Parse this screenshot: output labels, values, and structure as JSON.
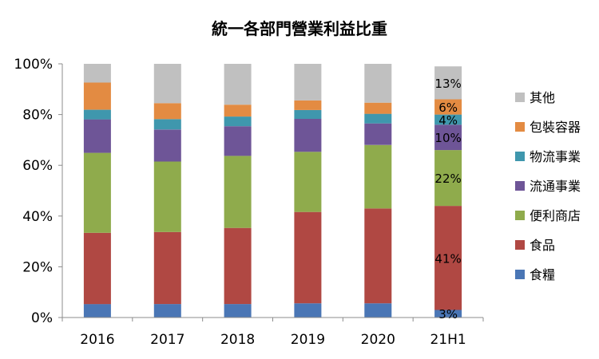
{
  "chart_data": {
    "type": "bar",
    "stacked": true,
    "percent": true,
    "title": "統一各部門營業利益比重",
    "categories": [
      "2016",
      "2017",
      "2018",
      "2019",
      "2020",
      "21H1"
    ],
    "ylim": [
      0,
      100
    ],
    "yticks": [
      "0%",
      "20%",
      "40%",
      "60%",
      "80%",
      "100%"
    ],
    "grid": false,
    "legend_position": "right",
    "series": [
      {
        "name": "食糧",
        "color": "#4A76B5",
        "values": [
          5.3,
          5.3,
          5.3,
          5.6,
          5.6,
          3
        ]
      },
      {
        "name": "食品",
        "color": "#B04843",
        "values": [
          28.1,
          28.4,
          30.0,
          36.0,
          37.4,
          41
        ]
      },
      {
        "name": "便利商店",
        "color": "#8FAB4C",
        "values": [
          31.5,
          27.8,
          28.4,
          23.7,
          25.0,
          22
        ]
      },
      {
        "name": "流通事業",
        "color": "#6E5597",
        "values": [
          13.2,
          12.6,
          11.7,
          13.0,
          8.5,
          10
        ]
      },
      {
        "name": "物流事業",
        "color": "#3F97AD",
        "values": [
          3.8,
          4.1,
          3.8,
          3.5,
          3.8,
          4
        ]
      },
      {
        "name": "包裝容器",
        "color": "#E38B42",
        "values": [
          10.7,
          6.3,
          4.7,
          3.8,
          4.4,
          6
        ]
      },
      {
        "name": "其他",
        "color": "#C0C0C0",
        "values": [
          7.4,
          15.5,
          16.1,
          14.4,
          15.3,
          13
        ]
      }
    ],
    "data_labels": {
      "category": "21H1",
      "labels": [
        "3%",
        "41%",
        "22%",
        "10%",
        "4%",
        "6%",
        "13%"
      ]
    }
  }
}
